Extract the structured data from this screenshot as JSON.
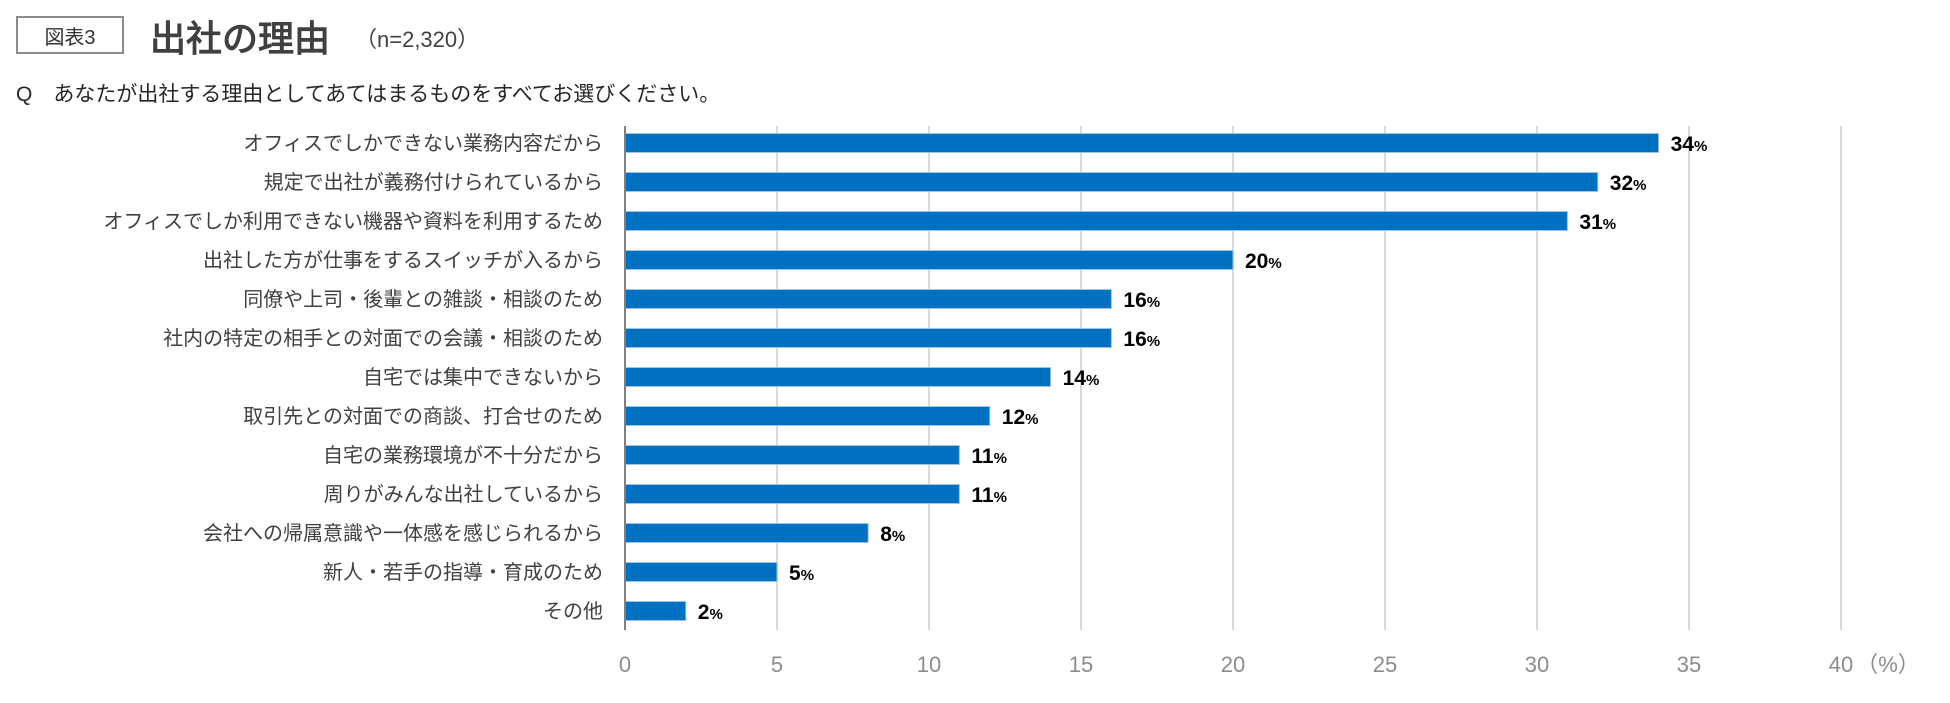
{
  "header": {
    "figure_label": "図表3",
    "title": "出社の理由",
    "sample": "（n=2,320）",
    "question": "Q　あなたが出社する理由としてあてはまるものをすべてお選びください。"
  },
  "chart_data": {
    "type": "bar",
    "orientation": "horizontal",
    "categories": [
      "オフィスでしかできない業務内容だから",
      "規定で出社が義務付けられているから",
      "オフィスでしか利用できない機器や資料を利用するため",
      "出社した方が仕事をするスイッチが入るから",
      "同僚や上司・後輩との雑談・相談のため",
      "社内の特定の相手との対面での会議・相談のため",
      "自宅では集中できないから",
      "取引先との対面での商談、打合せのため",
      "自宅の業務環境が不十分だから",
      "周りがみんな出社しているから",
      "会社への帰属意識や一体感を感じられるから",
      "新人・若手の指導・育成のため",
      "その他"
    ],
    "values": [
      34,
      32,
      31,
      20,
      16,
      16,
      14,
      12,
      11,
      11,
      8,
      5,
      2
    ],
    "value_suffix": "%",
    "xlim": [
      0,
      40
    ],
    "xticks": [
      "0",
      "5",
      "10",
      "15",
      "20",
      "25",
      "30",
      "35",
      "40"
    ],
    "xunit": "（%）",
    "grid": true,
    "bar_color": "#0070C0",
    "grid_color": "#d9d9d9"
  }
}
